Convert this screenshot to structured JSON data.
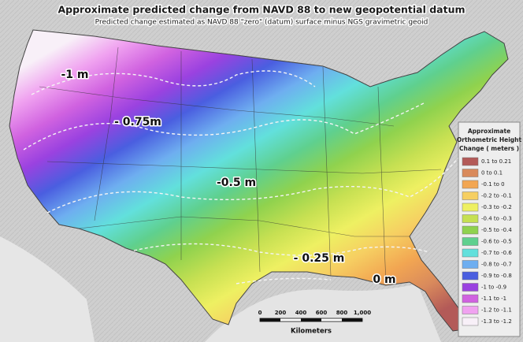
{
  "header": {
    "title": "Approximate predicted change from NAVD 88 to new geopotential datum",
    "subtitle": "Predicted change estimated as NAVD 88 \"zero\" (datum) surface minus NGS gravimetric geoid"
  },
  "map": {
    "contour_labels": [
      "-1 m",
      "- 0.75m",
      "-0.5 m",
      "- 0.25 m",
      "0 m"
    ]
  },
  "legend": {
    "title": [
      "Approximate",
      "Orthometric Height",
      "Change  ( meters )"
    ],
    "items": [
      {
        "label": "0.1 to 0.21",
        "color": "#b35a58"
      },
      {
        "label": "0 to 0.1",
        "color": "#d98a5c"
      },
      {
        "label": "-0.1 to 0",
        "color": "#f2a652"
      },
      {
        "label": "-0.2 to -0.1",
        "color": "#f6cf62"
      },
      {
        "label": "-0.3 to -0.2",
        "color": "#eef062"
      },
      {
        "label": "-0.4 to -0.3",
        "color": "#c6e052"
      },
      {
        "label": "-0.5 to -0.4",
        "color": "#8fd24e"
      },
      {
        "label": "-0.6 to -0.5",
        "color": "#5fd08e"
      },
      {
        "label": "-0.7 to -0.6",
        "color": "#62e0dc"
      },
      {
        "label": "-0.8 to -0.7",
        "color": "#6eaef0"
      },
      {
        "label": "-0.9 to -0.8",
        "color": "#4a5ee0"
      },
      {
        "label": "-1 to -0.9",
        "color": "#9a42e0"
      },
      {
        "label": "-1.1 to -1",
        "color": "#d062e0"
      },
      {
        "label": "-1.2 to -1.1",
        "color": "#f0a2f0"
      },
      {
        "label": "-1.3 to -1.2",
        "color": "#f8f0f8"
      }
    ]
  },
  "scale": {
    "ticks": [
      "0",
      "200",
      "400",
      "600",
      "800",
      "1,000"
    ],
    "unit": "Kilometers"
  }
}
